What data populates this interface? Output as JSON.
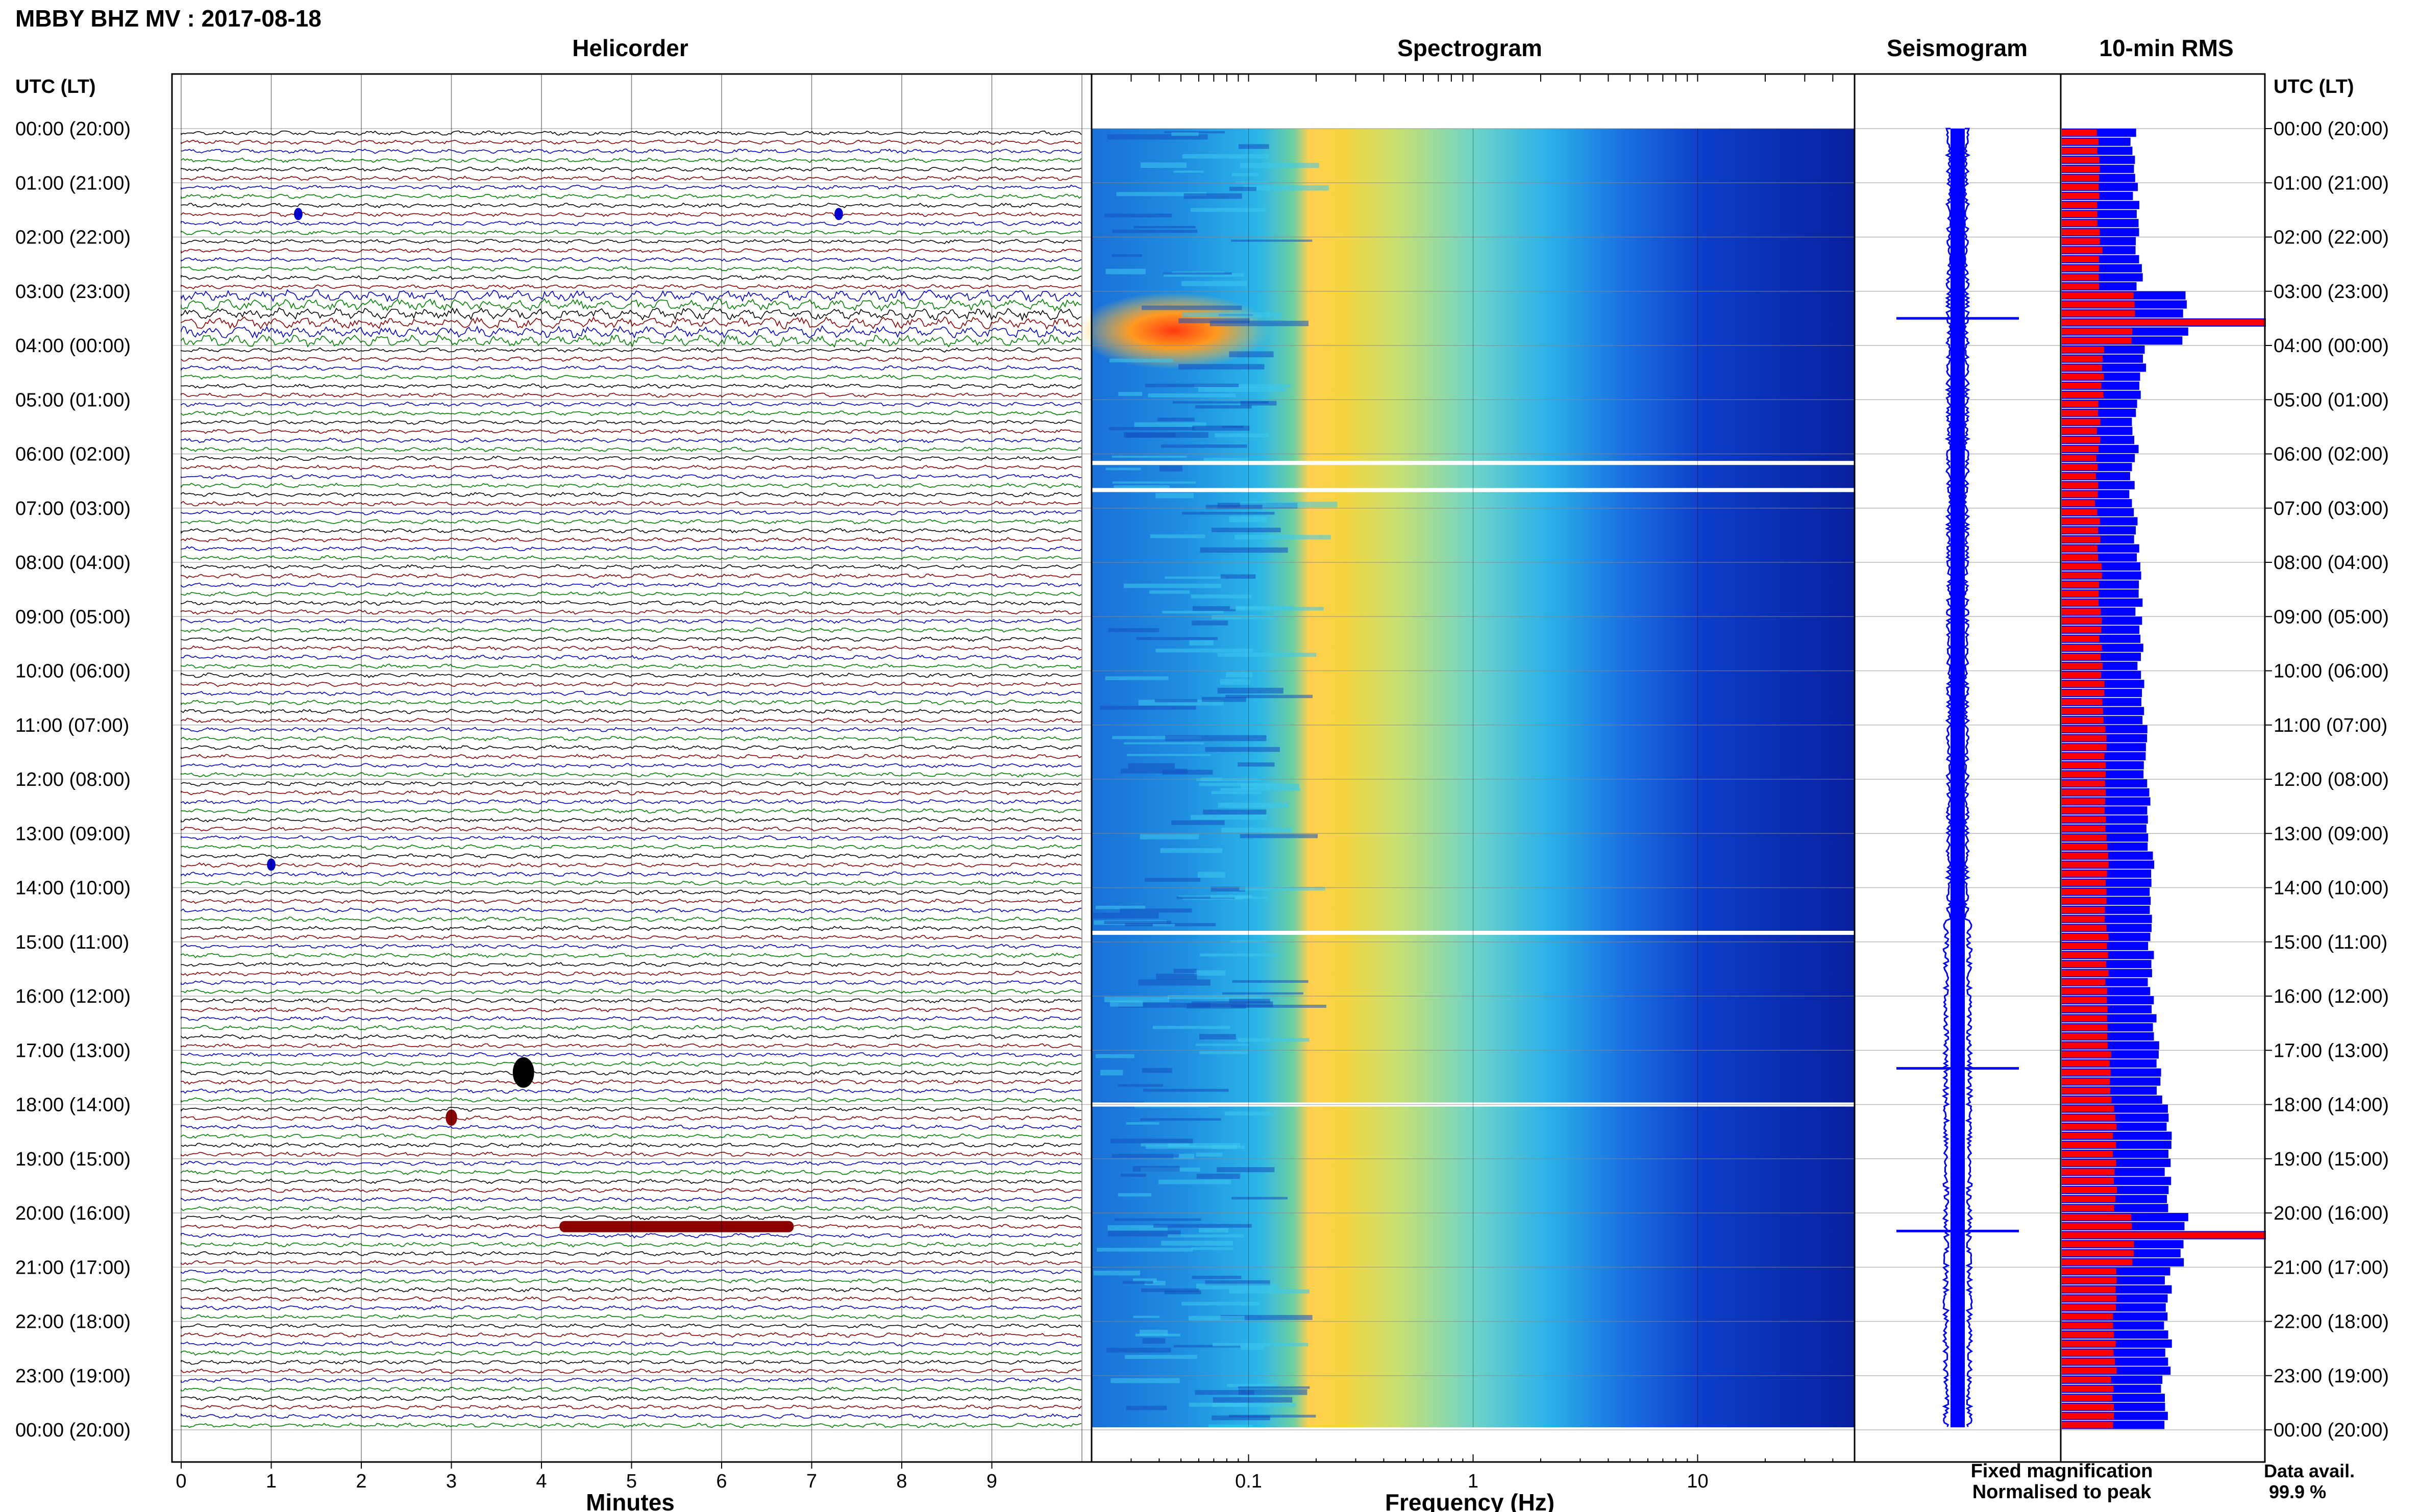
{
  "header": {
    "title": "MBBY BHZ MV : 2017-08-18"
  },
  "panels": {
    "helicorder": "Helicorder",
    "spectrogram": "Spectrogram",
    "seismogram": "Seismogram",
    "rms": "10-min RMS"
  },
  "axis": {
    "time_header": "UTC (LT)",
    "time_labels": [
      "00:00 (20:00)",
      "01:00 (21:00)",
      "02:00 (22:00)",
      "03:00 (23:00)",
      "04:00 (00:00)",
      "05:00 (01:00)",
      "06:00 (02:00)",
      "07:00 (03:00)",
      "08:00 (04:00)",
      "09:00 (05:00)",
      "10:00 (06:00)",
      "11:00 (07:00)",
      "12:00 (08:00)",
      "13:00 (09:00)",
      "14:00 (10:00)",
      "15:00 (11:00)",
      "16:00 (12:00)",
      "17:00 (13:00)",
      "18:00 (14:00)",
      "19:00 (15:00)",
      "20:00 (16:00)",
      "21:00 (17:00)",
      "22:00 (18:00)",
      "23:00 (19:00)",
      "00:00 (20:00)"
    ],
    "minutes_label": "Minutes",
    "minutes_ticks": [
      "0",
      "1",
      "2",
      "3",
      "4",
      "5",
      "6",
      "7",
      "8",
      "9"
    ],
    "freq_label": "Frequency (Hz)",
    "freq_ticks": [
      "0.1",
      "1",
      "10"
    ]
  },
  "legend": {
    "fixed": "Fixed magnification",
    "normalised": "Normalised to peak",
    "fixed_color": "#0000ff",
    "normalised_color": "#ff0000"
  },
  "data_avail": {
    "label": "Data avail.",
    "value": "99.9 %"
  },
  "chart_data": [
    {
      "type": "line",
      "panel": "Helicorder",
      "xlabel": "Minutes",
      "xlim": [
        0,
        10
      ],
      "rows_per_hour": 6,
      "trace_colors": [
        "#000000",
        "#8b0000",
        "#0000cc",
        "#008000"
      ],
      "events": [
        {
          "time": "01:30",
          "minute": 1.3,
          "note": "small"
        },
        {
          "time": "01:30",
          "minute": 7.3,
          "note": "small"
        },
        {
          "time": "03:00-03:50",
          "note": "elevated amplitude"
        },
        {
          "time": "13:30",
          "minute": 1.0,
          "note": "small"
        },
        {
          "time": "17:20",
          "minute": 3.8,
          "note": "large"
        },
        {
          "time": "18:10",
          "minute": 3.0,
          "note": "medium"
        },
        {
          "time": "20:10",
          "minute_start": 4.2,
          "minute_end": 6.8,
          "note": "long duration"
        }
      ]
    },
    {
      "type": "heatmap",
      "panel": "Spectrogram",
      "xlabel": "Frequency (Hz)",
      "xscale": "log",
      "xlim": [
        0.02,
        50
      ],
      "peak_band_hz": [
        0.2,
        0.5
      ],
      "gaps_utc": [
        "06:10",
        "06:40",
        "14:50",
        "18:00"
      ]
    },
    {
      "type": "line",
      "panel": "Seismogram",
      "spikes_utc": [
        "03:30",
        "17:20",
        "20:20"
      ]
    },
    {
      "type": "bar",
      "panel": "10-min RMS",
      "series": [
        {
          "name": "Fixed magnification",
          "color": "#0000ff"
        },
        {
          "name": "Normalised to peak",
          "color": "#ff0000"
        }
      ],
      "hourly_fixed": [
        0.35,
        0.36,
        0.38,
        0.6,
        0.4,
        0.36,
        0.34,
        0.37,
        0.38,
        0.39,
        0.4,
        0.42,
        0.42,
        0.44,
        0.44,
        0.44,
        0.46,
        0.48,
        0.52,
        0.52,
        0.6,
        0.52,
        0.52,
        0.5
      ],
      "hourly_norm": [
        0.18,
        0.18,
        0.19,
        0.35,
        0.2,
        0.18,
        0.17,
        0.18,
        0.19,
        0.19,
        0.2,
        0.21,
        0.21,
        0.22,
        0.22,
        0.22,
        0.23,
        0.24,
        0.26,
        0.26,
        0.35,
        0.26,
        0.26,
        0.25
      ],
      "peak_utc": [
        "03:30",
        "20:20"
      ]
    }
  ]
}
